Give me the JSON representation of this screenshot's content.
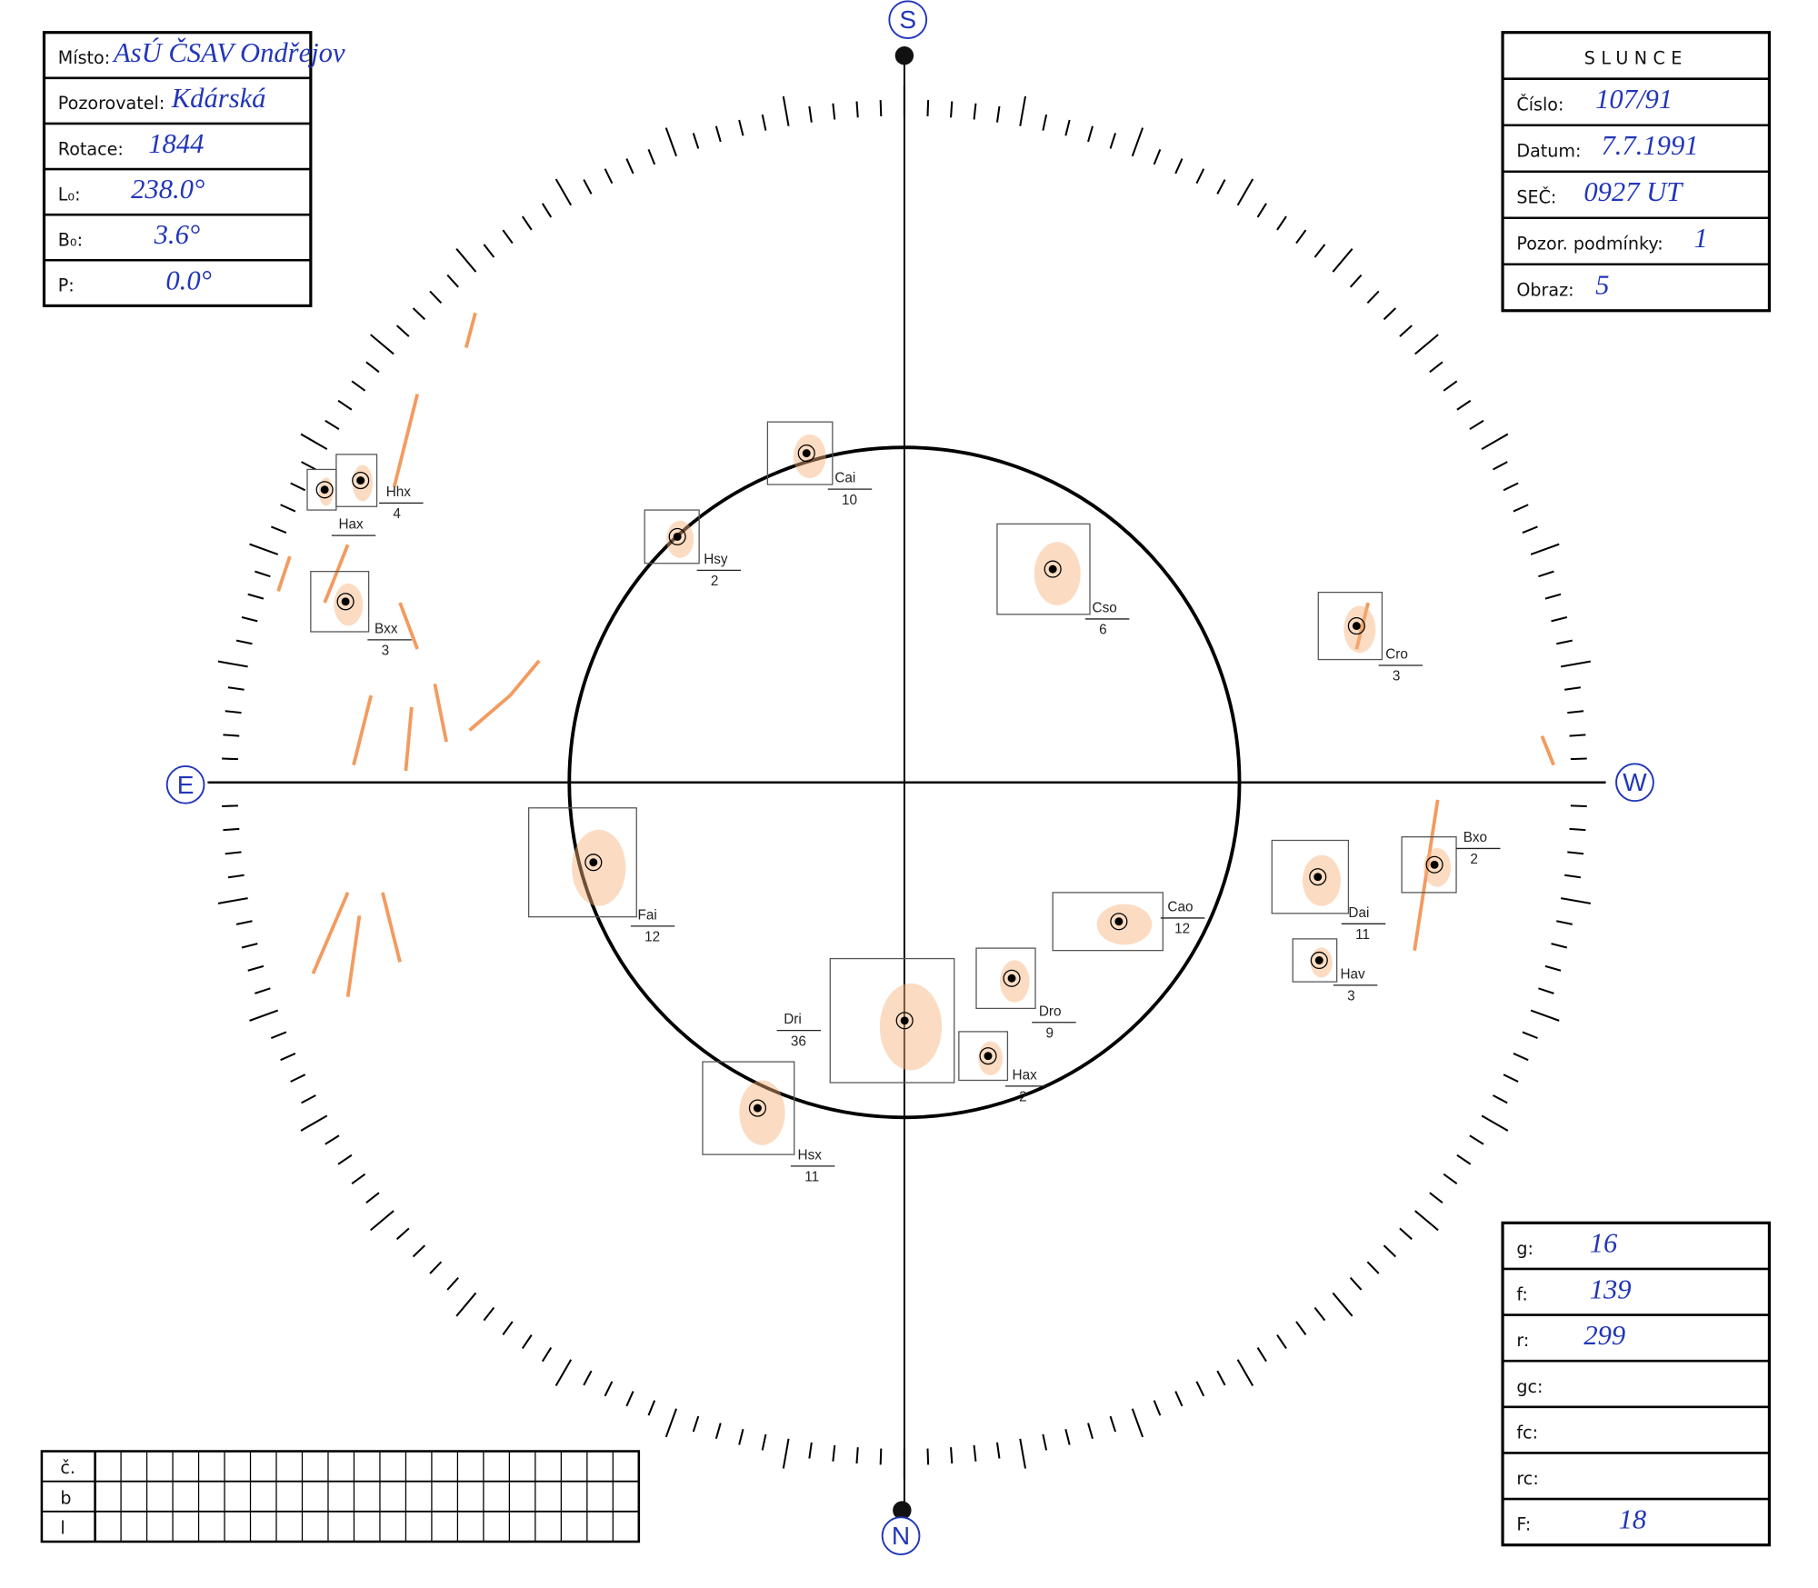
{
  "left_box": {
    "rows": [
      {
        "label": "Místo:",
        "value": "AsÚ ČSAV Ondřejov"
      },
      {
        "label": "Pozorovatel:",
        "value": "Kdárská"
      },
      {
        "label": "Rotace:",
        "value": "1844"
      },
      {
        "label": "L₀:",
        "value": "238.0°"
      },
      {
        "label": "B₀:",
        "value": "3.6°"
      },
      {
        "label": "P:",
        "value": "0.0°"
      }
    ]
  },
  "right_box": {
    "title": "SLUNCE",
    "rows": [
      {
        "label": "Číslo:",
        "value": "107/91"
      },
      {
        "label": "Datum:",
        "value": "7.7.1991"
      },
      {
        "label": "SEČ:",
        "value": "0927 UT"
      },
      {
        "label": "Pozor. podmínky:",
        "value": "1"
      },
      {
        "label": "Obraz:",
        "value": "5"
      }
    ]
  },
  "counts_box": {
    "rows": [
      {
        "label": "g:",
        "value": "16"
      },
      {
        "label": "f:",
        "value": "139"
      },
      {
        "label": "r:",
        "value": "299"
      },
      {
        "label": "gc:"
      },
      {
        "label": "fc:"
      },
      {
        "label": "rc:"
      },
      {
        "label": "F:",
        "value": "18"
      }
    ]
  },
  "compass": {
    "top": "S",
    "bottom": "N",
    "left": "E",
    "right": "W"
  },
  "groups": [
    {
      "label": "Hhx",
      "number": "4"
    },
    {
      "label": "Hax"
    },
    {
      "label": "Hsy",
      "number": "2"
    },
    {
      "label": "Cai",
      "number": "10"
    },
    {
      "label": "Cso",
      "number": "6"
    },
    {
      "label": "Cro",
      "number": "3"
    },
    {
      "label": "Bxx",
      "number": "3"
    },
    {
      "label": "Fai",
      "number": "12"
    },
    {
      "label": "Cao",
      "number": "12"
    },
    {
      "label": "Dai",
      "number": "11"
    },
    {
      "label": "Hav",
      "number": "3"
    },
    {
      "label": "Bxo",
      "number": "2"
    },
    {
      "label": "Dro",
      "number": "9"
    },
    {
      "label": "Dri",
      "number": "36"
    },
    {
      "label": "Hax",
      "number": "2"
    },
    {
      "label": "Hsx",
      "number": "11"
    }
  ],
  "position_table": {
    "rows": [
      "č.",
      "b",
      "l"
    ]
  }
}
